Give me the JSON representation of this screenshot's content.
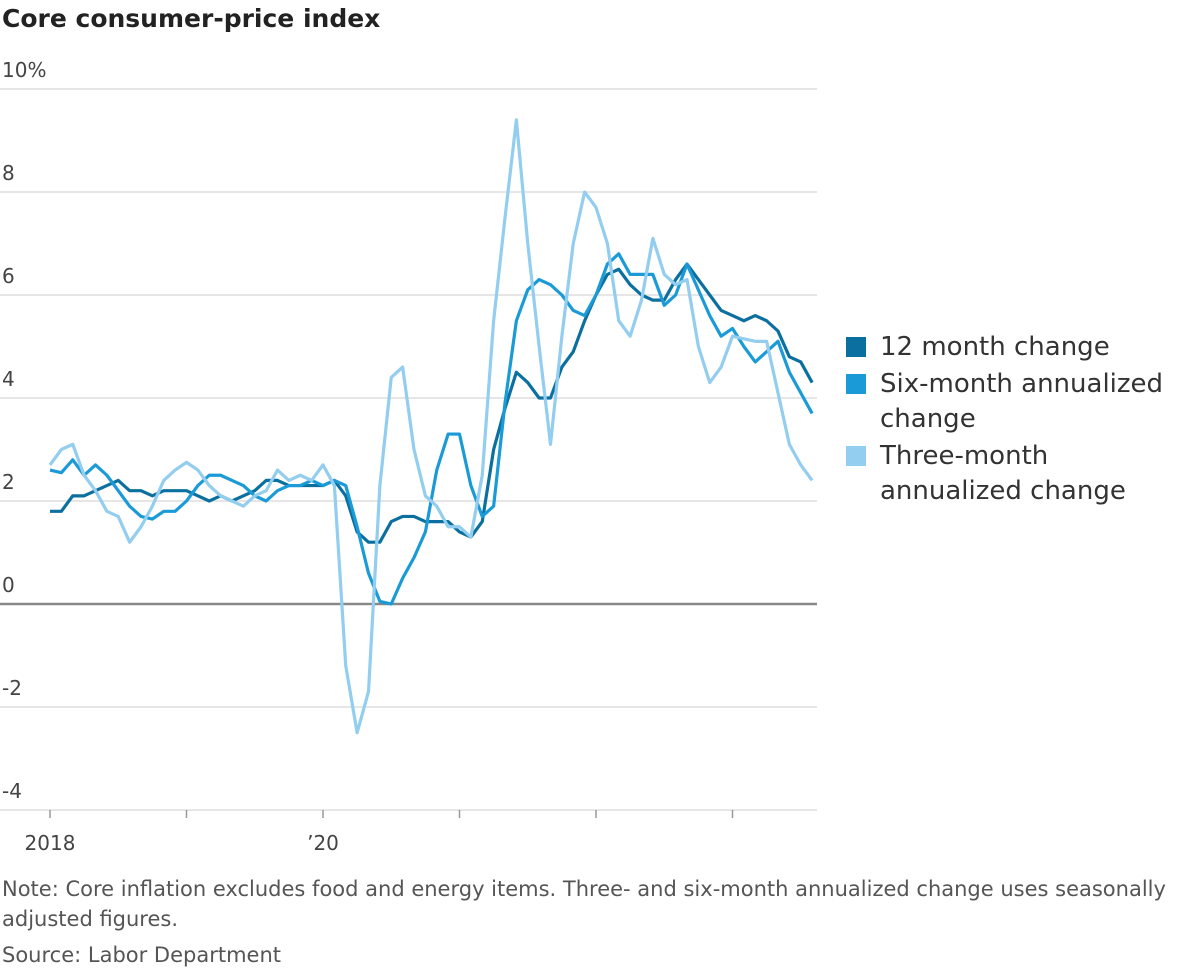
{
  "chart_data": {
    "type": "line",
    "title": "Core consumer-price index",
    "categories": [
      "2018",
      null,
      null,
      null,
      null,
      null,
      null,
      null,
      null,
      null,
      null,
      null,
      null,
      null,
      null,
      null,
      null,
      null,
      null,
      null,
      null,
      null,
      null,
      null,
      "’20",
      null,
      null,
      null,
      null,
      null,
      null,
      null,
      null,
      null,
      null,
      null,
      null,
      null,
      null,
      null,
      null,
      null,
      null,
      null,
      null,
      null,
      null,
      null,
      null,
      null,
      null,
      null,
      null,
      null,
      null,
      null,
      null,
      null,
      null,
      null,
      null,
      null,
      null,
      null,
      null,
      null,
      null,
      null
    ],
    "series": [
      {
        "name": "12 month change",
        "color": "#0b6f9f",
        "values": [
          1.8,
          1.8,
          2.1,
          2.1,
          2.2,
          2.3,
          2.4,
          2.2,
          2.2,
          2.1,
          2.2,
          2.2,
          2.2,
          2.1,
          2.0,
          2.1,
          2.0,
          2.1,
          2.2,
          2.4,
          2.4,
          2.3,
          2.3,
          2.3,
          2.3,
          2.4,
          2.1,
          1.4,
          1.2,
          1.2,
          1.6,
          1.7,
          1.7,
          1.6,
          1.6,
          1.6,
          1.4,
          1.3,
          1.6,
          3.0,
          3.8,
          4.5,
          4.3,
          4.0,
          4.0,
          4.6,
          4.9,
          5.5,
          6.0,
          6.4,
          6.5,
          6.2,
          6.0,
          5.9,
          5.9,
          6.3,
          6.6,
          6.3,
          6.0,
          5.7,
          5.6,
          5.5,
          5.6,
          5.5,
          5.3,
          4.8,
          4.7,
          4.3
        ]
      },
      {
        "name": "Six-month annualized change",
        "color": "#1a9bd7",
        "values": [
          2.6,
          2.55,
          2.8,
          2.5,
          2.7,
          2.5,
          2.2,
          1.9,
          1.7,
          1.65,
          1.8,
          1.8,
          2.0,
          2.3,
          2.5,
          2.5,
          2.4,
          2.3,
          2.1,
          2.0,
          2.2,
          2.3,
          2.3,
          2.4,
          2.3,
          2.4,
          2.3,
          1.5,
          0.6,
          0.05,
          0.0,
          0.5,
          0.9,
          1.4,
          2.6,
          3.3,
          3.3,
          2.3,
          1.7,
          1.9,
          3.9,
          5.5,
          6.1,
          6.3,
          6.2,
          6.0,
          5.7,
          5.6,
          6.0,
          6.6,
          6.8,
          6.4,
          6.4,
          6.4,
          5.8,
          6.0,
          6.6,
          6.1,
          5.6,
          5.2,
          5.35,
          5.0,
          4.7,
          4.9,
          5.1,
          4.5,
          4.1,
          3.7
        ]
      },
      {
        "name": "Three-month annualized change",
        "color": "#93cdef",
        "values": [
          2.7,
          3.0,
          3.1,
          2.5,
          2.2,
          1.8,
          1.7,
          1.2,
          1.5,
          1.9,
          2.4,
          2.6,
          2.75,
          2.6,
          2.3,
          2.1,
          2.0,
          1.9,
          2.1,
          2.2,
          2.6,
          2.4,
          2.5,
          2.4,
          2.7,
          2.3,
          -1.2,
          -2.5,
          -1.7,
          2.3,
          4.4,
          4.6,
          3.0,
          2.1,
          1.9,
          1.5,
          1.5,
          1.3,
          2.5,
          5.5,
          7.5,
          9.4,
          7.0,
          5.0,
          3.1,
          5.2,
          7.0,
          8.0,
          7.7,
          7.0,
          5.5,
          5.2,
          5.9,
          7.1,
          6.4,
          6.2,
          6.3,
          5.0,
          4.3,
          4.6,
          5.2,
          5.15,
          5.1,
          5.1,
          4.1,
          3.1,
          2.7,
          2.4
        ]
      }
    ],
    "ylim": [
      -4,
      10
    ],
    "yticks": [
      -4,
      -2,
      0,
      2,
      4,
      6,
      8,
      {
        "value": 10,
        "label": "10%"
      }
    ],
    "grid": true,
    "legend": "right",
    "note": "Note: Core inflation excludes food and energy items. Three- and six-month annualized change uses seasonally adjusted figures.",
    "source": "Source: Labor Department"
  }
}
